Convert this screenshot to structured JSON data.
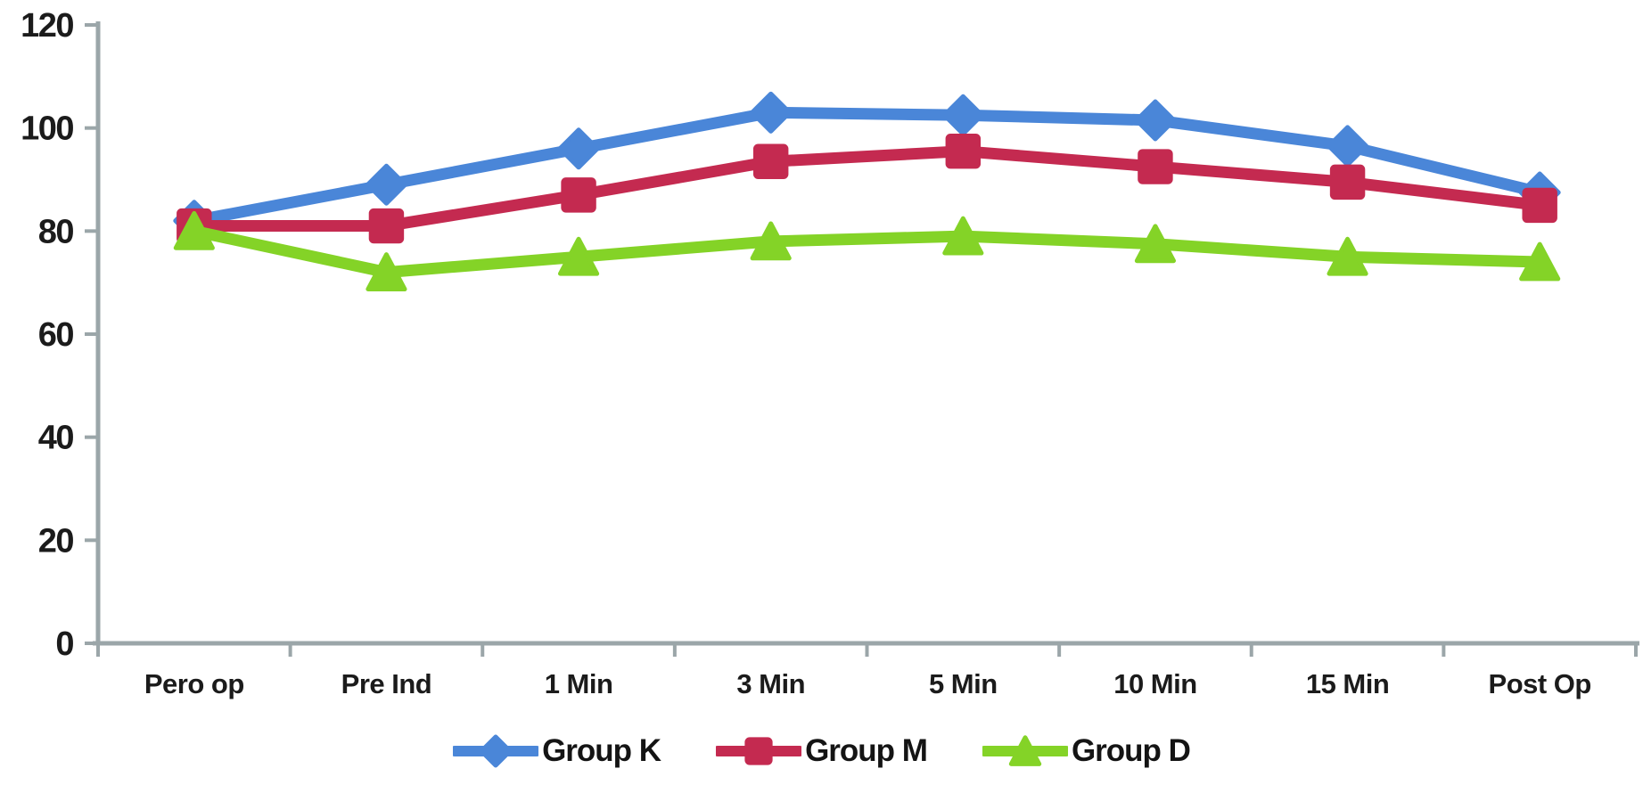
{
  "chart_data": {
    "type": "line",
    "title": "",
    "xlabel": "",
    "ylabel": "",
    "categories": [
      "Pero op",
      "Pre Ind",
      "1 Min",
      "3 Min",
      "5 Min",
      "10 Min",
      "15 Min",
      "Post Op"
    ],
    "series": [
      {
        "name": "Group K",
        "marker": "diamond",
        "color": "#4A86D8",
        "values": [
          82,
          89,
          96,
          103,
          102.5,
          101.5,
          96.5,
          87.5
        ]
      },
      {
        "name": "Group M",
        "marker": "square",
        "color": "#C42A50",
        "values": [
          81,
          81,
          87,
          93.5,
          95.5,
          92.5,
          89.5,
          85
        ]
      },
      {
        "name": "Group D",
        "marker": "triangle",
        "color": "#84D327",
        "values": [
          80,
          72,
          75,
          78,
          79,
          77.5,
          75,
          74
        ]
      }
    ],
    "ylim": [
      0,
      120
    ],
    "ytick_step": 20,
    "y_tick_labels": [
      "0",
      "20",
      "40",
      "60",
      "80",
      "100",
      "120"
    ],
    "grid": false,
    "legend_position": "bottom",
    "axis_color": "#9BA6A9",
    "text_color": "#1b1b1b",
    "background": "#FFFFFF"
  }
}
